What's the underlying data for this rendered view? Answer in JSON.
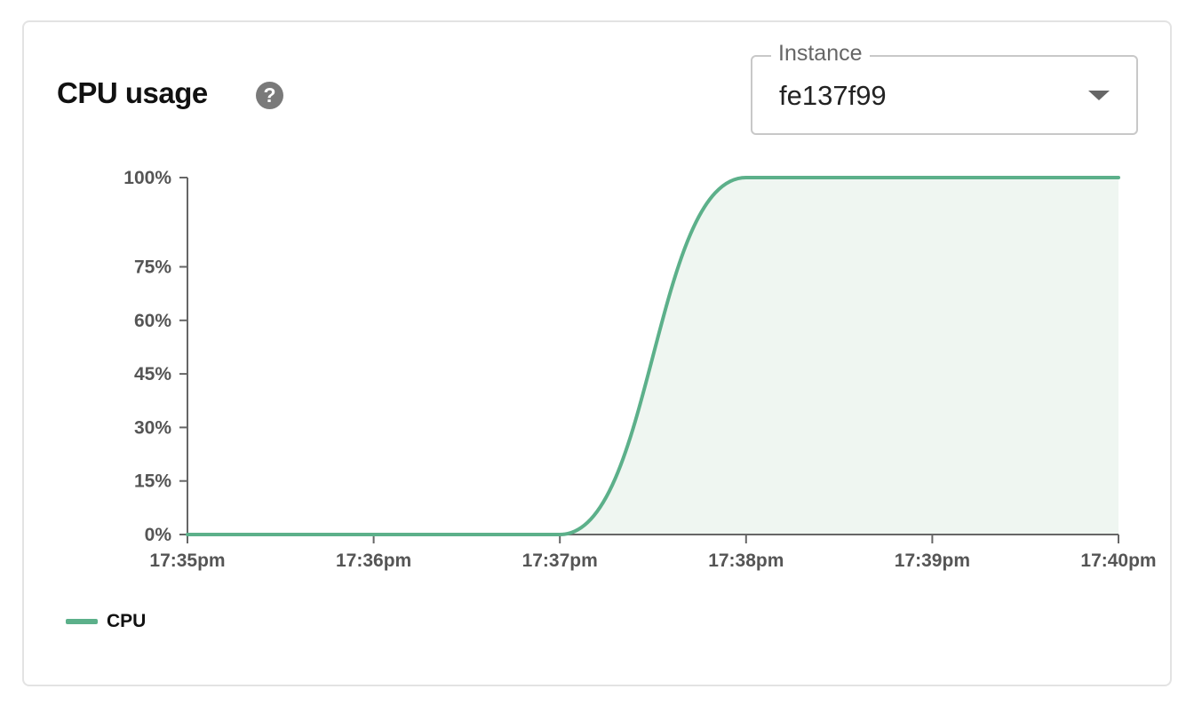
{
  "header": {
    "title": "CPU usage",
    "help_icon": "question-circle-icon"
  },
  "instance_select": {
    "label": "Instance",
    "value": "fe137f99"
  },
  "colors": {
    "line": "#5cb08a",
    "fill": "#eff6f1",
    "axis": "#666666"
  },
  "chart_data": {
    "type": "area",
    "x": [
      "17:35pm",
      "17:36pm",
      "17:37pm",
      "17:38pm",
      "17:39pm",
      "17:40pm"
    ],
    "series": [
      {
        "name": "CPU",
        "values": [
          0,
          0,
          0,
          100,
          100,
          100
        ]
      }
    ],
    "yticks": [
      "0%",
      "15%",
      "30%",
      "45%",
      "60%",
      "75%",
      "100%"
    ],
    "ytick_values": [
      0,
      15,
      30,
      45,
      60,
      75,
      100
    ],
    "ylim": [
      0,
      100
    ],
    "grid": false,
    "legend": "bottom-left",
    "curve": "smooth"
  }
}
